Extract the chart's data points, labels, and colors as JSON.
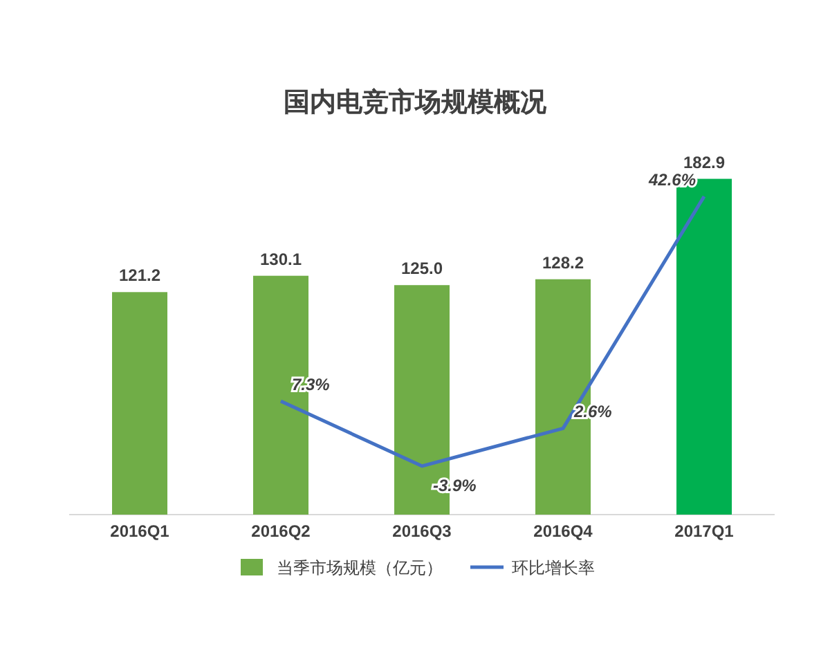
{
  "chart_data": {
    "type": "bar",
    "title": "国内电竞市场规模概况",
    "categories": [
      "2016Q1",
      "2016Q2",
      "2016Q3",
      "2016Q4",
      "2017Q1"
    ],
    "series": [
      {
        "name": "当季市场规模（亿元）",
        "color": "#70ad47",
        "colors": [
          "#70ad47",
          "#70ad47",
          "#70ad47",
          "#70ad47",
          "#00b050"
        ],
        "values": [
          121.2,
          130.1,
          125.0,
          128.2,
          182.9
        ],
        "value_labels": [
          "121.2",
          "130.1",
          "125.0",
          "128.2",
          "182.9"
        ]
      },
      {
        "name": "环比增长率",
        "type": "line",
        "axis": "y2",
        "color": "#4472c4",
        "values": [
          null,
          7.3,
          -3.9,
          2.6,
          42.6
        ],
        "value_labels": [
          null,
          "7.3%",
          "-3.9%",
          "2.6%",
          "42.6%"
        ]
      }
    ],
    "legend": "bottom",
    "tick_labels": "x",
    "marker": "none"
  }
}
